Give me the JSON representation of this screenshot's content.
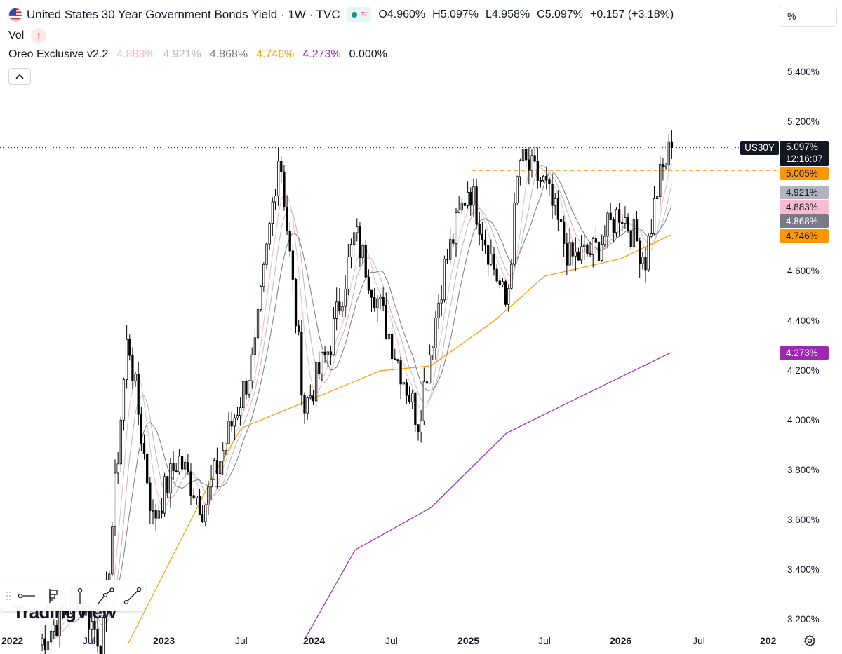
{
  "header": {
    "title": "United States 30 Year Government Bonds Yield · 1W · TVC",
    "ohlc": [
      {
        "key": "O",
        "value": "4.960%"
      },
      {
        "key": "H",
        "value": "5.097%"
      },
      {
        "key": "L",
        "value": "4.958%"
      },
      {
        "key": "C",
        "value": "5.097%"
      },
      {
        "key": "",
        "value": "+0.157 (+3.18%)"
      }
    ],
    "percent_button": "%"
  },
  "vol": {
    "label": "Vol",
    "warning": "!"
  },
  "indicator": {
    "name": "Oreo Exclusive v2.2",
    "values": [
      {
        "text": "4.883%",
        "color": "#f4b6c8"
      },
      {
        "text": "4.921%",
        "color": "#b8b8bc"
      },
      {
        "text": "4.868%",
        "color": "#787b86"
      },
      {
        "text": "4.746%",
        "color": "#ff9800"
      },
      {
        "text": "4.273%",
        "color": "#9c27b0"
      },
      {
        "text": "0.000%",
        "color": "#131722"
      }
    ]
  },
  "price_axis": {
    "ticks": [
      "5.400%",
      "5.200%",
      "4.600%",
      "4.400%",
      "4.200%",
      "4.000%",
      "3.800%",
      "3.600%",
      "3.400%",
      "3.200%"
    ],
    "tick_values": [
      5.4,
      5.2,
      4.6,
      4.4,
      4.2,
      4.0,
      3.8,
      3.6,
      3.4,
      3.2
    ]
  },
  "price_tags": {
    "symbol": "US30Y",
    "last_price": "5.097%",
    "countdown": "12:16:07",
    "resistance": "5.005%",
    "ma_values": [
      {
        "text": "4.921%",
        "bg": "#b2b5be",
        "fg": "#131722"
      },
      {
        "text": "4.883%",
        "bg": "#f8bbd0",
        "fg": "#131722"
      },
      {
        "text": "4.868%",
        "bg": "#787b86",
        "fg": "#ffffff"
      },
      {
        "text": "4.746%",
        "bg": "#ff9800",
        "fg": "#131722"
      },
      {
        "text": "4.273%",
        "bg": "#9c27b0",
        "fg": "#ffffff"
      }
    ]
  },
  "time_axis": {
    "labels": [
      {
        "text": "2022",
        "year": true
      },
      {
        "text": "Jul",
        "year": false
      },
      {
        "text": "2023",
        "year": true
      },
      {
        "text": "Jul",
        "year": false
      },
      {
        "text": "2024",
        "year": true
      },
      {
        "text": "Jul",
        "year": false
      },
      {
        "text": "2025",
        "year": true
      },
      {
        "text": "Jul",
        "year": false
      },
      {
        "text": "2026",
        "year": true
      },
      {
        "text": "Jul",
        "year": false
      },
      {
        "text": "202",
        "year": true
      }
    ]
  },
  "watermark": "TradingView",
  "colors": {
    "up": "#ffffff",
    "down": "#000000",
    "ma_fast": "#f4b6c8",
    "ma_mid": "#b8b8bc",
    "ma_slow": "#787b86",
    "ma_orange": "#ff9800",
    "ma_purple": "#9c27b0"
  },
  "chart_data": {
    "type": "candlestick",
    "timeframe": "1W",
    "x_range": [
      "2022-01",
      "2026-12"
    ],
    "y_range": [
      3.1,
      5.5
    ],
    "last_close": 5.097,
    "resistance_level": 5.005,
    "anchors": [
      {
        "t": "2022-03",
        "v": 3.1
      },
      {
        "t": "2022-06",
        "v": 3.3
      },
      {
        "t": "2022-08",
        "v": 3.1
      },
      {
        "t": "2022-10",
        "v": 4.35
      },
      {
        "t": "2022-12",
        "v": 3.6
      },
      {
        "t": "2023-02",
        "v": 3.85
      },
      {
        "t": "2023-04",
        "v": 3.65
      },
      {
        "t": "2023-06",
        "v": 3.95
      },
      {
        "t": "2023-08",
        "v": 4.25
      },
      {
        "t": "2023-10",
        "v": 5.1
      },
      {
        "t": "2023-12",
        "v": 4.05
      },
      {
        "t": "2024-02",
        "v": 4.3
      },
      {
        "t": "2024-04",
        "v": 4.75
      },
      {
        "t": "2024-06",
        "v": 4.45
      },
      {
        "t": "2024-09",
        "v": 4.0
      },
      {
        "t": "2024-11",
        "v": 4.6
      },
      {
        "t": "2025-01",
        "v": 4.95
      },
      {
        "t": "2025-04",
        "v": 4.45
      },
      {
        "t": "2025-05",
        "v": 5.05
      },
      {
        "t": "2025-07",
        "v": 4.95
      },
      {
        "t": "2025-09",
        "v": 4.65
      },
      {
        "t": "2025-11",
        "v": 4.68
      },
      {
        "t": "2026-01",
        "v": 4.85
      },
      {
        "t": "2026-03",
        "v": 4.65
      },
      {
        "t": "2026-04",
        "v": 4.95
      },
      {
        "t": "2026-05",
        "v": 5.097
      }
    ],
    "moving_averages": [
      {
        "label": "4.883%",
        "last": 4.883,
        "color": "#f4b6c8"
      },
      {
        "label": "4.921%",
        "last": 4.921,
        "color": "#b8b8bc"
      },
      {
        "label": "4.868%",
        "last": 4.868,
        "color": "#787b86"
      },
      {
        "label": "4.746%",
        "last": 4.746,
        "color": "#ff9800"
      },
      {
        "label": "4.273%",
        "last": 4.273,
        "color": "#9c27b0"
      }
    ],
    "orange_ma_points": [
      {
        "t": "2022-10",
        "v": 3.1
      },
      {
        "t": "2023-05",
        "v": 3.8
      },
      {
        "t": "2023-07",
        "v": 3.97
      },
      {
        "t": "2024-06",
        "v": 4.2
      },
      {
        "t": "2024-10",
        "v": 4.22
      },
      {
        "t": "2025-03",
        "v": 4.4
      },
      {
        "t": "2025-07",
        "v": 4.58
      },
      {
        "t": "2026-01",
        "v": 4.65
      },
      {
        "t": "2026-05",
        "v": 4.746
      }
    ],
    "purple_ma_points": [
      {
        "t": "2023-12",
        "v": 3.12
      },
      {
        "t": "2024-04",
        "v": 3.48
      },
      {
        "t": "2024-10",
        "v": 3.65
      },
      {
        "t": "2025-04",
        "v": 3.95
      },
      {
        "t": "2025-10",
        "v": 4.1
      },
      {
        "t": "2026-05",
        "v": 4.273
      }
    ]
  }
}
